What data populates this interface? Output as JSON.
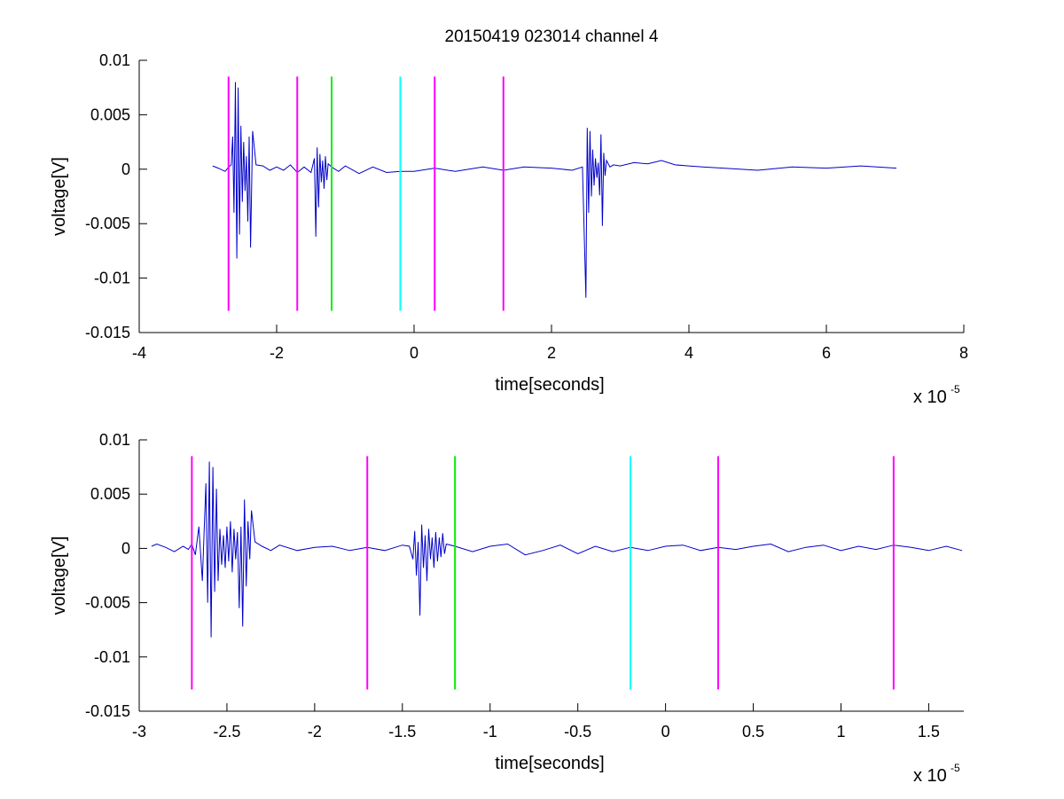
{
  "title": "20150419 023014 channel 4",
  "colors": {
    "signal": "#0000cc",
    "magenta": "#ff00ff",
    "green": "#00ee00",
    "cyan": "#00ffff",
    "axis": "#000000"
  },
  "chart_data": [
    {
      "type": "line",
      "title": "20150419 023014 channel 4",
      "xlabel": "time[seconds]",
      "ylabel": "voltage[V]",
      "x_exponent_label": "x 10",
      "x_exponent": "-5",
      "xlim": [
        -4,
        8
      ],
      "ylim": [
        -0.015,
        0.01
      ],
      "x_ticks": [
        -4,
        -2,
        0,
        2,
        4,
        6,
        8
      ],
      "x_tick_labels": [
        "-4",
        "-2",
        "0",
        "2",
        "4",
        "6",
        "8"
      ],
      "y_ticks": [
        -0.015,
        -0.01,
        -0.005,
        0,
        0.005,
        0.01
      ],
      "y_tick_labels": [
        "-0.015",
        "-0.01",
        "-0.005",
        "0",
        "0.005",
        "0.01"
      ],
      "grid": false,
      "series": [
        {
          "color": "#0000cc",
          "x": [
            -2.93,
            -2.85,
            -2.75,
            -2.7,
            -2.66,
            -2.64,
            -2.62,
            -2.6,
            -2.58,
            -2.56,
            -2.54,
            -2.52,
            -2.5,
            -2.48,
            -2.46,
            -2.44,
            -2.42,
            -2.4,
            -2.38,
            -2.35,
            -2.3,
            -2.2,
            -2.1,
            -2.0,
            -1.9,
            -1.8,
            -1.7,
            -1.6,
            -1.5,
            -1.45,
            -1.43,
            -1.41,
            -1.39,
            -1.37,
            -1.35,
            -1.33,
            -1.31,
            -1.29,
            -1.27,
            -1.25,
            -1.2,
            -1.1,
            -1.0,
            -0.8,
            -0.6,
            -0.4,
            -0.2,
            0.0,
            0.3,
            0.6,
            1.0,
            1.3,
            1.6,
            2.0,
            2.3,
            2.45,
            2.5,
            2.52,
            2.54,
            2.56,
            2.58,
            2.6,
            2.62,
            2.64,
            2.66,
            2.68,
            2.7,
            2.72,
            2.74,
            2.76,
            2.78,
            2.8,
            2.85,
            2.9,
            3.0,
            3.2,
            3.4,
            3.6,
            3.8,
            4.0,
            4.2,
            4.5,
            5.0,
            5.5,
            6.0,
            6.5,
            7.02
          ],
          "y": [
            0.0003,
            0.0001,
            -0.0002,
            0.0002,
            0.0004,
            0.003,
            -0.004,
            0.008,
            -0.0082,
            0.0075,
            -0.006,
            0.004,
            -0.003,
            0.0025,
            -0.002,
            0.0012,
            -0.0048,
            0.003,
            -0.0072,
            0.0035,
            0.0004,
            0.0003,
            -0.0001,
            0.0002,
            -0.0001,
            0.0004,
            -0.0003,
            0.0002,
            -0.0003,
            0.001,
            -0.0062,
            0.002,
            -0.0035,
            0.0014,
            -0.0012,
            0.0008,
            -0.0018,
            0.0012,
            -0.001,
            0.0005,
            0.0002,
            -0.0002,
            0.0003,
            -0.0004,
            0.0002,
            -0.0003,
            -0.0002,
            -0.0002,
            0.0001,
            -0.0002,
            0.0002,
            -0.0001,
            0.0002,
            0.0001,
            -0.0001,
            0.0002,
            -0.0118,
            0.0038,
            -0.004,
            0.0035,
            -0.0025,
            0.0018,
            -0.0015,
            0.001,
            -0.0008,
            0.0006,
            -0.0024,
            0.0032,
            -0.0052,
            0.0015,
            -0.0006,
            0.0008,
            0.0002,
            0.0004,
            0.0003,
            0.0006,
            0.0005,
            0.0008,
            0.0004,
            0.0003,
            0.0002,
            0.0001,
            -0.0001,
            0.0002,
            0.0001,
            0.0003,
            0.0001
          ]
        }
      ],
      "markers": [
        {
          "x": -2.7,
          "color": "#ff00ff"
        },
        {
          "x": -1.7,
          "color": "#ff00ff"
        },
        {
          "x": -1.2,
          "color": "#00ee00"
        },
        {
          "x": -0.2,
          "color": "#00ffff"
        },
        {
          "x": 0.3,
          "color": "#ff00ff"
        },
        {
          "x": 1.3,
          "color": "#ff00ff"
        }
      ],
      "marker_range": [
        -0.013,
        0.0085
      ]
    },
    {
      "type": "line",
      "xlabel": "time[seconds]",
      "ylabel": "voltage[V]",
      "x_exponent_label": "x 10",
      "x_exponent": "-5",
      "xlim": [
        -3.0,
        1.7
      ],
      "ylim": [
        -0.015,
        0.01
      ],
      "x_ticks": [
        -3,
        -2.5,
        -2,
        -1.5,
        -1,
        -0.5,
        0,
        0.5,
        1,
        1.5
      ],
      "x_tick_labels": [
        "-3",
        "-2.5",
        "-2",
        "-1.5",
        "-1",
        "-0.5",
        "0",
        "0.5",
        "1",
        "1.5"
      ],
      "y_ticks": [
        -0.015,
        -0.01,
        -0.005,
        0,
        0.005,
        0.01
      ],
      "y_tick_labels": [
        "-0.015",
        "-0.01",
        "-0.005",
        "0",
        "0.005",
        "0.01"
      ],
      "grid": false,
      "series": [
        {
          "color": "#0000cc",
          "x": [
            -2.93,
            -2.9,
            -2.85,
            -2.8,
            -2.75,
            -2.72,
            -2.7,
            -2.68,
            -2.66,
            -2.64,
            -2.62,
            -2.61,
            -2.6,
            -2.59,
            -2.58,
            -2.57,
            -2.56,
            -2.55,
            -2.54,
            -2.53,
            -2.52,
            -2.51,
            -2.5,
            -2.49,
            -2.48,
            -2.47,
            -2.46,
            -2.45,
            -2.44,
            -2.43,
            -2.42,
            -2.41,
            -2.4,
            -2.39,
            -2.38,
            -2.37,
            -2.36,
            -2.34,
            -2.3,
            -2.25,
            -2.2,
            -2.1,
            -2.0,
            -1.9,
            -1.8,
            -1.7,
            -1.6,
            -1.5,
            -1.46,
            -1.44,
            -1.43,
            -1.42,
            -1.41,
            -1.4,
            -1.39,
            -1.38,
            -1.37,
            -1.36,
            -1.35,
            -1.34,
            -1.33,
            -1.32,
            -1.31,
            -1.3,
            -1.29,
            -1.28,
            -1.27,
            -1.26,
            -1.25,
            -1.2,
            -1.1,
            -1.0,
            -0.9,
            -0.8,
            -0.7,
            -0.6,
            -0.5,
            -0.4,
            -0.3,
            -0.2,
            -0.1,
            0.0,
            0.1,
            0.2,
            0.3,
            0.4,
            0.5,
            0.6,
            0.7,
            0.8,
            0.9,
            1.0,
            1.1,
            1.2,
            1.3,
            1.4,
            1.5,
            1.6,
            1.69
          ],
          "y": [
            0.0002,
            0.0004,
            0.0001,
            -0.0003,
            0.0002,
            -0.0001,
            0.0004,
            -0.0006,
            0.002,
            -0.003,
            0.006,
            -0.005,
            0.008,
            -0.0082,
            0.0075,
            -0.004,
            0.0055,
            -0.003,
            0.0018,
            -0.0015,
            0.0012,
            -0.0018,
            0.002,
            -0.0012,
            0.0025,
            -0.0022,
            0.0018,
            -0.001,
            0.0015,
            -0.0055,
            0.002,
            -0.0072,
            0.0045,
            -0.0035,
            0.0025,
            -0.001,
            0.0035,
            0.0006,
            0.0002,
            -0.0002,
            0.0003,
            -0.0002,
            0.0001,
            0.0002,
            -0.0002,
            0.0001,
            -0.0002,
            0.0003,
            0.0002,
            -0.001,
            0.0016,
            -0.0025,
            0.0006,
            -0.0062,
            0.0022,
            -0.0018,
            0.0012,
            -0.003,
            0.0018,
            -0.001,
            0.001,
            -0.0018,
            0.0015,
            -0.0012,
            0.001,
            -0.0008,
            0.0014,
            -0.0005,
            0.0004,
            0.0002,
            -0.0003,
            0.0002,
            0.0004,
            -0.0006,
            -0.0002,
            0.0003,
            -0.0005,
            0.0002,
            -0.0003,
            0.0001,
            -0.0002,
            0.0002,
            0.0003,
            -0.0002,
            0.0001,
            -0.0001,
            0.0002,
            0.0004,
            -0.0003,
            0.0001,
            0.0003,
            -0.0002,
            0.0002,
            -0.0001,
            0.0003,
            0.0001,
            -0.0002,
            0.0002,
            -0.0002
          ]
        }
      ],
      "markers": [
        {
          "x": -2.7,
          "color": "#ff00ff"
        },
        {
          "x": -1.7,
          "color": "#ff00ff"
        },
        {
          "x": -1.2,
          "color": "#00ee00"
        },
        {
          "x": -0.2,
          "color": "#00ffff"
        },
        {
          "x": 0.3,
          "color": "#ff00ff"
        },
        {
          "x": 1.3,
          "color": "#ff00ff"
        }
      ],
      "marker_range": [
        -0.013,
        0.0085
      ]
    }
  ]
}
